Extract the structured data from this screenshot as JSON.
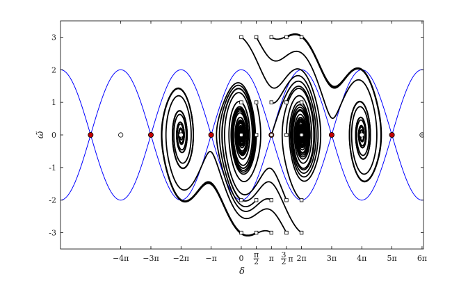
{
  "chart_data": {
    "type": "line",
    "title": "",
    "xlabel": "δ",
    "ylabel": "ω̃",
    "xlim": [
      -18.85,
      19.0
    ],
    "ylim": [
      -3.5,
      3.5
    ],
    "grid": false,
    "x_ticks": [
      {
        "value": -12.566,
        "label": "−4π"
      },
      {
        "value": -9.425,
        "label": "−3π"
      },
      {
        "value": -6.283,
        "label": "−2π"
      },
      {
        "value": -3.142,
        "label": "−π"
      },
      {
        "value": 0,
        "label": "0"
      },
      {
        "value": 1.571,
        "label": "π/2",
        "frac": [
          "π",
          "2"
        ]
      },
      {
        "value": 3.142,
        "label": "π"
      },
      {
        "value": 4.712,
        "label": "3/2π",
        "frac": [
          "3",
          "2"
        ],
        "suffix": "π"
      },
      {
        "value": 6.283,
        "label": "2π"
      },
      {
        "value": 9.425,
        "label": "3π"
      },
      {
        "value": 12.566,
        "label": "4π"
      },
      {
        "value": 15.708,
        "label": "5π"
      },
      {
        "value": 18.85,
        "label": "6π"
      }
    ],
    "y_ticks": [
      {
        "value": 3,
        "label": "3"
      },
      {
        "value": 2,
        "label": "2"
      },
      {
        "value": 1,
        "label": "1"
      },
      {
        "value": 0,
        "label": "0"
      },
      {
        "value": -1,
        "label": "-1"
      },
      {
        "value": -2,
        "label": "-2"
      },
      {
        "value": -3,
        "label": "-3"
      }
    ],
    "separatrix": {
      "color": "#0000ff",
      "amplitude": 2.0
    },
    "saddle_points": {
      "color": "#c00000",
      "points": [
        [
          -15.708,
          0
        ],
        [
          -9.425,
          0
        ],
        [
          -3.142,
          0
        ],
        [
          3.142,
          0
        ],
        [
          9.425,
          0
        ],
        [
          15.708,
          0
        ]
      ]
    },
    "stable_points": [
      [
        -12.566,
        0
      ],
      [
        -6.283,
        0
      ],
      [
        0,
        0
      ],
      [
        6.283,
        0
      ],
      [
        12.566,
        0
      ],
      [
        18.85,
        0
      ]
    ],
    "initial_conditions": [
      [
        0,
        3
      ],
      [
        1.571,
        3
      ],
      [
        3.142,
        3
      ],
      [
        4.712,
        3
      ],
      [
        6.283,
        3
      ],
      [
        0,
        1
      ],
      [
        1.571,
        1
      ],
      [
        3.142,
        1
      ],
      [
        4.712,
        1
      ],
      [
        6.283,
        1
      ],
      [
        0,
        0
      ],
      [
        1.571,
        0
      ],
      [
        3.142,
        0
      ],
      [
        4.712,
        0
      ],
      [
        6.283,
        0
      ],
      [
        0,
        -2
      ],
      [
        1.571,
        -2
      ],
      [
        3.142,
        -2
      ],
      [
        4.712,
        -2
      ],
      [
        6.283,
        -2
      ],
      [
        0,
        -3
      ],
      [
        1.571,
        -3
      ],
      [
        3.142,
        -3
      ],
      [
        4.712,
        -3
      ],
      [
        6.283,
        -3
      ]
    ],
    "trajectory_color": "#000000",
    "simulation": {
      "damping": 0.2,
      "dt": 0.02,
      "steps": 1600
    }
  }
}
